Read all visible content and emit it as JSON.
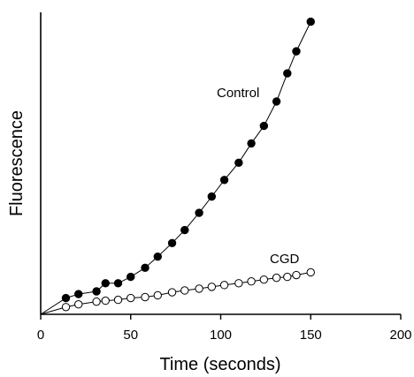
{
  "chart_data": {
    "type": "scatter",
    "title": "",
    "xlabel": "Time (seconds)",
    "ylabel": "Fluorescence",
    "xlim": [
      0,
      200
    ],
    "ylim": [
      0,
      100
    ],
    "x_ticks": [
      "0",
      "50",
      "100",
      "150",
      "200"
    ],
    "y_ticks_visible": false,
    "grid": false,
    "legend": "none",
    "series": [
      {
        "name": "Control",
        "marker": "filled-circle",
        "color": "#000000",
        "x": [
          0,
          14,
          21,
          31,
          36,
          43,
          50,
          58,
          65,
          73,
          80,
          88,
          95,
          102,
          110,
          117,
          124,
          131,
          137,
          142,
          150
        ],
        "y": [
          0,
          5.4,
          6.7,
          7.6,
          10.3,
          10.3,
          12.4,
          15.4,
          19.1,
          23.6,
          27.9,
          33.6,
          39.0,
          44.5,
          50.2,
          56.6,
          62.4,
          70.5,
          79.8,
          87.1,
          96.9
        ]
      },
      {
        "name": "CGD",
        "marker": "open-circle",
        "color": "#000000",
        "x": [
          0,
          14,
          21,
          31,
          36,
          43,
          50,
          58,
          65,
          73,
          80,
          88,
          95,
          102,
          110,
          117,
          124,
          131,
          137,
          142,
          150
        ],
        "y": [
          0,
          2.4,
          3.3,
          4.2,
          4.5,
          4.8,
          5.4,
          5.7,
          6.3,
          7.3,
          7.9,
          8.5,
          9.1,
          9.7,
          10.3,
          10.9,
          11.5,
          12.1,
          12.4,
          13.0,
          13.9
        ]
      }
    ],
    "annotations": [
      "Control",
      "CGD"
    ]
  }
}
